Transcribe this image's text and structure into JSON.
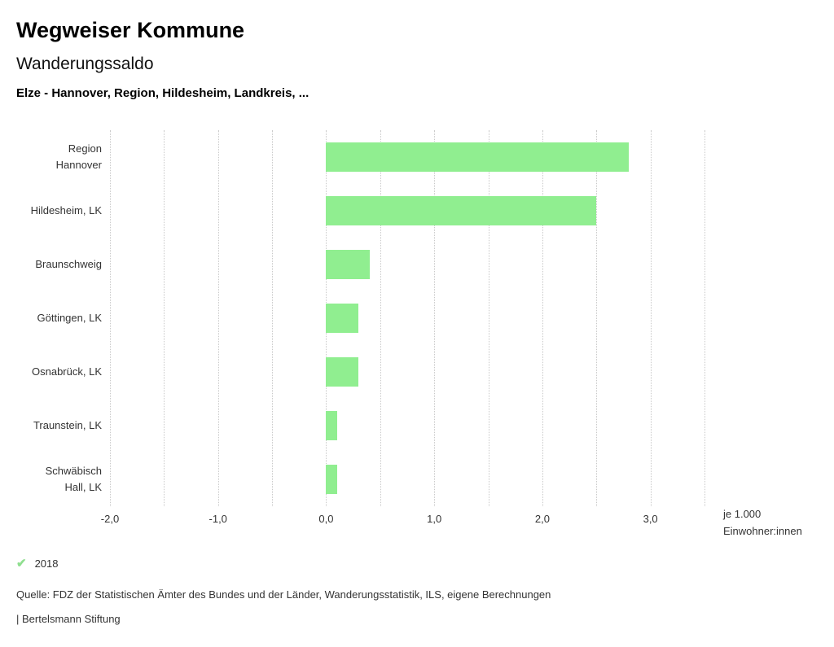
{
  "header": {
    "app_title": "Wegweiser Kommune",
    "chart_title": "Wanderungssaldo",
    "selection": "Elze - Hannover, Region, Hildesheim, Landkreis, ..."
  },
  "chart_data": {
    "type": "bar",
    "orientation": "horizontal",
    "title": "Wanderungssaldo",
    "categories": [
      "Region Hannover",
      "Hildesheim, LK",
      "Braunschweig",
      "Göttingen, LK",
      "Osnabrück, LK",
      "Traunstein, LK",
      "Schwäbisch Hall, LK"
    ],
    "category_lines": [
      [
        "Region",
        "Hannover"
      ],
      [
        "Hildesheim, LK"
      ],
      [
        "Braunschweig"
      ],
      [
        "Göttingen, LK"
      ],
      [
        "Osnabrück, LK"
      ],
      [
        "Traunstein, LK"
      ],
      [
        "Schwäbisch",
        "Hall, LK"
      ]
    ],
    "series": [
      {
        "name": "2018",
        "values": [
          2.8,
          2.5,
          0.4,
          0.3,
          0.3,
          0.1,
          0.1
        ]
      }
    ],
    "xlabel": "",
    "ylabel": "",
    "xlim": [
      -2.0,
      3.5
    ],
    "grid": true,
    "grid_step": 0.5,
    "ticks": [
      {
        "value": -2,
        "label": "-2,0"
      },
      {
        "value": -1,
        "label": "-1,0"
      },
      {
        "value": 0,
        "label": "0,0"
      },
      {
        "value": 1,
        "label": "1,0"
      },
      {
        "value": 2,
        "label": "2,0"
      },
      {
        "value": 3,
        "label": "3,0"
      }
    ],
    "unit_label_lines": [
      "je 1.000",
      "Einwohner:innen"
    ],
    "bar_color": "#90ee90",
    "gridline_color": "#c9c9c9",
    "legend_position": "bottom-left"
  },
  "legend": {
    "items": [
      {
        "label": "2018",
        "checked": true,
        "color": "#8fdf8f",
        "check_glyph": "✔"
      }
    ]
  },
  "footer": {
    "source": "Quelle: FDZ der Statistischen Ämter des Bundes und der Länder, Wanderungsstatistik, ILS, eigene Berechnungen",
    "brand": "| Bertelsmann Stiftung"
  }
}
